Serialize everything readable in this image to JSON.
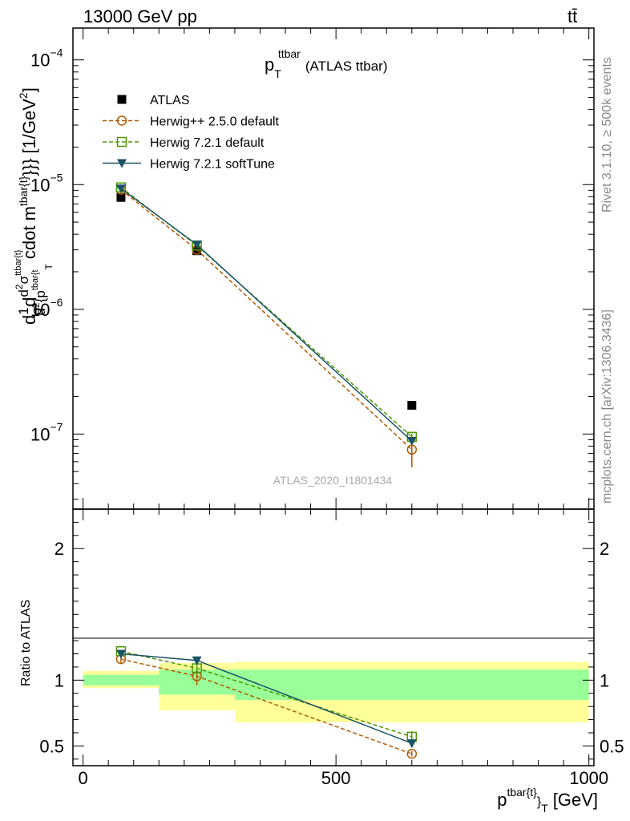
{
  "header": {
    "energy_label": "13000 GeV pp",
    "process_label": "tt̄"
  },
  "side_labels": {
    "rivet": "Rivet 3.1.10, ≥ 500k events",
    "mcplots": "mcplots.cern.ch [arXiv:1306.3436]"
  },
  "colors": {
    "atlas": "#000000",
    "herwig_pp": "#b35900",
    "herwig_721_default": "#4c9900",
    "herwig_721_softtune": "#1a5266",
    "band_stat": "#99ff99",
    "band_total": "#ffff99"
  },
  "chart_data": [
    {
      "type": "scatter",
      "panel": "main",
      "title": "p_T^{ttbar} (ATLAS ttbar)",
      "title_main": "p",
      "title_sub": "T",
      "title_sup": "ttbar",
      "title_suffix": "(ATLAS ttbar)",
      "ylabel": "d1/σd d²σ^{ttbar{t}}/d² {p^{tbar{t}}}_T cdot m^{tbar{t}}}} [1/GeV²]",
      "ylabel_parts": {
        "d": "d",
        "frac_num": "1",
        "sigma": "σ",
        "d2": "d",
        "d2sigma_num": "d",
        "sup2": "2",
        "sigma2": "σ",
        "sup_ttbar": "ttbar{t}",
        "den_d": "d",
        "den_sup2": "2",
        "den_p": "{p",
        "den_sup": "tbar{t",
        "sub_t": "T",
        "cdot": "cdot m",
        "cdot_sup": "tbar{t}",
        "tail": "}}} [1/GeV",
        "tail_sup": "2",
        "close": "]"
      },
      "yscale": "log",
      "ylim": [
        2.5e-08,
        0.00018
      ],
      "y_ticks": [
        {
          "value": 1e-07,
          "label_base": "10",
          "label_exp": "−7"
        },
        {
          "value": 1e-06,
          "label_base": "10",
          "label_exp": "−6"
        },
        {
          "value": 1e-05,
          "label_base": "10",
          "label_exp": "−5"
        },
        {
          "value": 0.0001,
          "label_base": "10",
          "label_exp": "−4"
        }
      ],
      "xlim": [
        -20,
        1010
      ],
      "watermark": "ATLAS_2020_I1801434",
      "legend_position": "top-left",
      "series": [
        {
          "name": "ATLAS",
          "marker": "filled-square",
          "line": "none",
          "x": [
            75,
            225,
            650
          ],
          "y": [
            7.9e-06,
            2.95e-06,
            1.7e-07
          ],
          "yerr_lo": [
            0,
            0,
            0
          ],
          "yerr_hi": [
            0,
            0,
            0
          ]
        },
        {
          "name": "Herwig++ 2.5.0 default",
          "marker": "open-circle",
          "line": "dashed",
          "x": [
            75,
            225,
            650
          ],
          "y": [
            9.1e-06,
            3e-06,
            7.5e-08
          ],
          "yerr_lo": [
            0,
            0,
            2.1e-08
          ],
          "yerr_hi": [
            0,
            0,
            8e-09
          ]
        },
        {
          "name": "Herwig 7.2.1 default",
          "marker": "open-square",
          "line": "dashed",
          "x": [
            75,
            225,
            650
          ],
          "y": [
            9.5e-06,
            3.25e-06,
            9.5e-08
          ],
          "yerr_lo": [
            0,
            0,
            6e-09
          ],
          "yerr_hi": [
            0,
            0,
            6e-09
          ]
        },
        {
          "name": "Herwig 7.2.1 softTune",
          "marker": "filled-triangle-down",
          "line": "solid",
          "x": [
            75,
            225,
            650
          ],
          "y": [
            9.3e-06,
            3.3e-06,
            8.8e-08
          ],
          "yerr_lo": [
            0,
            0,
            4e-09
          ],
          "yerr_hi": [
            0,
            0,
            4e-09
          ]
        }
      ]
    },
    {
      "type": "scatter",
      "panel": "ratio",
      "ylabel": "Ratio to ATLAS",
      "xlabel": "p^{tbar{t}}_T [GeV]",
      "xlabel_parts": {
        "p": "p",
        "sup": "tbar{t}",
        "brace": "}",
        "sub": "T",
        "unit": "[GeV]"
      },
      "ylim": [
        0.35,
        2.3
      ],
      "y_ticks": [
        {
          "value": 0.5,
          "label": "0.5"
        },
        {
          "value": 1,
          "label": "1"
        },
        {
          "value": 2,
          "label": "2"
        }
      ],
      "xlim": [
        -20,
        1010
      ],
      "x_ticks": [
        {
          "value": 0,
          "label": "0"
        },
        {
          "value": 500,
          "label": "500"
        },
        {
          "value": 1000,
          "label": "1000"
        }
      ],
      "bands": [
        {
          "x_lo": 0,
          "x_hi": 150,
          "total_lo": 0.94,
          "total_hi": 1.07,
          "stat_lo": 0.96,
          "stat_hi": 1.04
        },
        {
          "x_lo": 150,
          "x_hi": 300,
          "total_lo": 0.77,
          "total_hi": 1.13,
          "stat_lo": 0.89,
          "stat_hi": 1.08
        },
        {
          "x_lo": 300,
          "x_hi": 1000,
          "total_lo": 0.68,
          "total_hi": 1.14,
          "stat_lo": 0.85,
          "stat_hi": 1.08
        }
      ],
      "series": [
        {
          "name": "Herwig++ 2.5.0 default",
          "x": [
            75,
            225,
            650
          ],
          "y": [
            1.16,
            1.03,
            0.44
          ],
          "yerr_lo": [
            0.03,
            0.07,
            0.02
          ],
          "yerr_hi": [
            0.03,
            0.04,
            0.02
          ]
        },
        {
          "name": "Herwig 7.2.1 default",
          "x": [
            75,
            225,
            650
          ],
          "y": [
            1.22,
            1.09,
            0.57
          ],
          "yerr_lo": [
            0.01,
            0.03,
            0.04
          ],
          "yerr_hi": [
            0.01,
            0.03,
            0.04
          ]
        },
        {
          "name": "Herwig 7.2.1 softTune",
          "x": [
            75,
            225,
            650
          ],
          "y": [
            1.2,
            1.15,
            0.52
          ],
          "yerr_lo": [
            0.01,
            0.03,
            0.03
          ],
          "yerr_hi": [
            0.01,
            0.03,
            0.03
          ]
        }
      ]
    }
  ]
}
